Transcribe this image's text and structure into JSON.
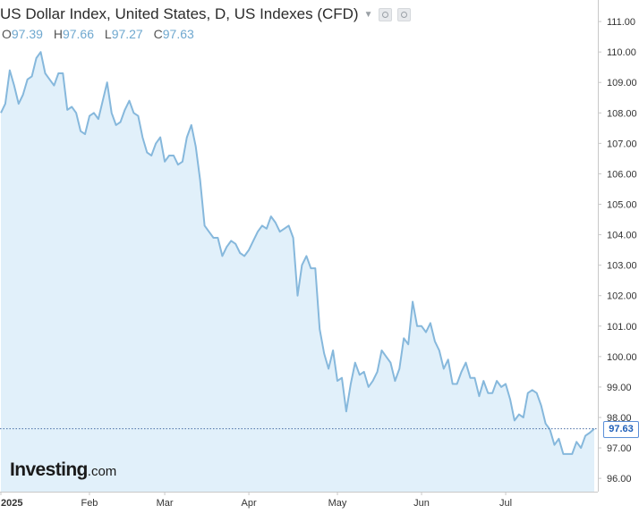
{
  "header": {
    "title": "US Dollar Index, United States, D, US Indexes (CFD)",
    "ohlc": [
      {
        "key": "O",
        "value": "97.39"
      },
      {
        "key": "H",
        "value": "97.66"
      },
      {
        "key": "L",
        "value": "97.27"
      },
      {
        "key": "C",
        "value": "97.63"
      }
    ]
  },
  "logo": {
    "name": "Investing",
    "suffix": ".com"
  },
  "colors": {
    "line": "#86b8dc",
    "fill": "#e1f0fa",
    "grid": "#e6e6e6",
    "axis": "#c8c8c8",
    "price_tag": "#1f5fb8"
  },
  "chart_data": {
    "type": "area",
    "title": "US Dollar Index, United States, D, US Indexes (CFD)",
    "xlabel": "",
    "ylabel": "",
    "ylim": [
      95.5,
      111.5
    ],
    "grid": false,
    "y_ticks": [
      "96.00",
      "97.00",
      "98.00",
      "99.00",
      "100.00",
      "101.00",
      "102.00",
      "103.00",
      "104.00",
      "105.00",
      "106.00",
      "107.00",
      "108.00",
      "109.00",
      "110.00",
      "111.00"
    ],
    "x_tick_labels": [
      {
        "label": "2025",
        "index": 0
      },
      {
        "label": "Feb",
        "index": 20
      },
      {
        "label": "Mar",
        "index": 37
      },
      {
        "label": "Apr",
        "index": 56
      },
      {
        "label": "May",
        "index": 76
      },
      {
        "label": "Jun",
        "index": 95
      },
      {
        "label": "Jul",
        "index": 114
      }
    ],
    "last_price": "97.63",
    "series": [
      {
        "name": "US Dollar Index",
        "values": [
          108.0,
          108.3,
          109.4,
          108.9,
          108.3,
          108.6,
          109.1,
          109.2,
          109.8,
          110.0,
          109.3,
          109.1,
          108.9,
          109.3,
          109.3,
          108.1,
          108.2,
          108.0,
          107.4,
          107.3,
          107.9,
          108.0,
          107.8,
          108.4,
          109.0,
          108.0,
          107.6,
          107.7,
          108.1,
          108.4,
          108.0,
          107.9,
          107.2,
          106.7,
          106.6,
          107.0,
          107.2,
          106.4,
          106.6,
          106.6,
          106.3,
          106.4,
          107.2,
          107.6,
          106.9,
          105.8,
          104.3,
          104.1,
          103.9,
          103.9,
          103.3,
          103.6,
          103.8,
          103.7,
          103.4,
          103.3,
          103.5,
          103.8,
          104.1,
          104.3,
          104.2,
          104.6,
          104.4,
          104.1,
          104.2,
          104.3,
          103.9,
          102.0,
          103.0,
          103.3,
          102.9,
          102.9,
          100.9,
          100.1,
          99.6,
          100.2,
          99.2,
          99.3,
          98.2,
          99.1,
          99.8,
          99.4,
          99.5,
          99.0,
          99.2,
          99.5,
          100.2,
          100.0,
          99.8,
          99.2,
          99.6,
          100.6,
          100.4,
          101.8,
          101.0,
          101.0,
          100.8,
          101.1,
          100.5,
          100.2,
          99.6,
          99.9,
          99.1,
          99.1,
          99.5,
          99.8,
          99.3,
          99.3,
          98.7,
          99.2,
          98.8,
          98.8,
          99.2,
          99.0,
          99.1,
          98.6,
          97.9,
          98.1,
          98.0,
          98.8,
          98.9,
          98.8,
          98.4,
          97.8,
          97.6,
          97.1,
          97.3,
          96.8,
          96.8,
          96.8,
          97.2,
          97.0,
          97.4,
          97.5,
          97.63
        ]
      }
    ]
  }
}
